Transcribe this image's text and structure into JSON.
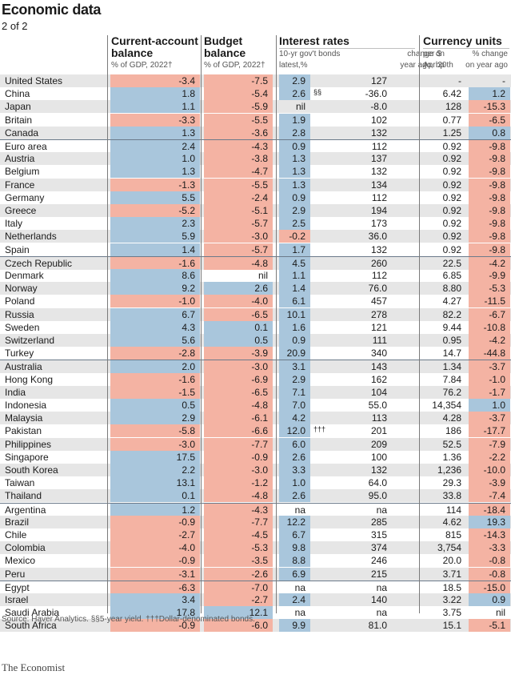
{
  "header": {
    "title": "Economic data",
    "subtitle": "2 of 2"
  },
  "columns": {
    "current_account": {
      "title": "Current-account balance",
      "sub": "% of GDP, 2022†"
    },
    "budget": {
      "title": "Budget balance",
      "sub": "% of GDP, 2022†"
    },
    "interest": {
      "title": "Interest rates",
      "sub_a": "10-yr gov't bonds",
      "sub_b": "latest,%",
      "sub_c": "change on",
      "sub_d": "year ago, bp"
    },
    "currency": {
      "title": "Currency units",
      "sub_a": "per $",
      "sub_b": "Apr 20th",
      "sub_c": "% change",
      "sub_d": "on year ago"
    }
  },
  "rows": [
    {
      "country": "United States",
      "ca": "-3.4",
      "bb": "-7.5",
      "ir": "2.9",
      "ch": "127",
      "fx": "-",
      "fxc": "-",
      "group": true
    },
    {
      "country": "China",
      "ca": "1.8",
      "bb": "-5.4",
      "ir": "2.6",
      "irnote": "§§",
      "ch": "-36.0",
      "fx": "6.42",
      "fxc": "1.2"
    },
    {
      "country": "Japan",
      "ca": "1.1",
      "bb": "-5.9",
      "ir": "nil",
      "ch": "-8.0",
      "fx": "128",
      "fxc": "-15.3"
    },
    {
      "country": "Britain",
      "ca": "-3.3",
      "bb": "-5.5",
      "ir": "1.9",
      "ch": "102",
      "fx": "0.77",
      "fxc": "-6.5"
    },
    {
      "country": "Canada",
      "ca": "1.3",
      "bb": "-3.6",
      "ir": "2.8",
      "ch": "132",
      "fx": "1.25",
      "fxc": "0.8"
    },
    {
      "country": "Euro area",
      "ca": "2.4",
      "bb": "-4.3",
      "ir": "0.9",
      "ch": "112",
      "fx": "0.92",
      "fxc": "-9.8",
      "group": true
    },
    {
      "country": "Austria",
      "ca": "1.0",
      "bb": "-3.8",
      "ir": "1.3",
      "ch": "137",
      "fx": "0.92",
      "fxc": "-9.8"
    },
    {
      "country": "Belgium",
      "ca": "1.3",
      "bb": "-4.7",
      "ir": "1.3",
      "ch": "132",
      "fx": "0.92",
      "fxc": "-9.8"
    },
    {
      "country": "France",
      "ca": "-1.3",
      "bb": "-5.5",
      "ir": "1.3",
      "ch": "134",
      "fx": "0.92",
      "fxc": "-9.8"
    },
    {
      "country": "Germany",
      "ca": "5.5",
      "bb": "-2.4",
      "ir": "0.9",
      "ch": "112",
      "fx": "0.92",
      "fxc": "-9.8"
    },
    {
      "country": "Greece",
      "ca": "-5.2",
      "bb": "-5.1",
      "ir": "2.9",
      "ch": "194",
      "fx": "0.92",
      "fxc": "-9.8"
    },
    {
      "country": "Italy",
      "ca": "2.3",
      "bb": "-5.7",
      "ir": "2.5",
      "ch": "173",
      "fx": "0.92",
      "fxc": "-9.8"
    },
    {
      "country": "Netherlands",
      "ca": "5.9",
      "bb": "-3.0",
      "ir": "-0.2",
      "ch": "36.0",
      "fx": "0.92",
      "fxc": "-9.8"
    },
    {
      "country": "Spain",
      "ca": "1.4",
      "bb": "-5.7",
      "ir": "1.7",
      "ch": "132",
      "fx": "0.92",
      "fxc": "-9.8"
    },
    {
      "country": "Czech Republic",
      "ca": "-1.6",
      "bb": "-4.8",
      "ir": "4.5",
      "ch": "260",
      "fx": "22.5",
      "fxc": "-4.2",
      "group": true
    },
    {
      "country": "Denmark",
      "ca": "8.6",
      "bb": "nil",
      "ir": "1.1",
      "ch": "112",
      "fx": "6.85",
      "fxc": "-9.9"
    },
    {
      "country": "Norway",
      "ca": "9.2",
      "bb": "2.6",
      "ir": "1.4",
      "ch": "76.0",
      "fx": "8.80",
      "fxc": "-5.3"
    },
    {
      "country": "Poland",
      "ca": "-1.0",
      "bb": "-4.0",
      "ir": "6.1",
      "ch": "457",
      "fx": "4.27",
      "fxc": "-11.5"
    },
    {
      "country": "Russia",
      "ca": "6.7",
      "bb": "-6.5",
      "ir": "10.1",
      "ch": "278",
      "fx": "82.2",
      "fxc": "-6.7"
    },
    {
      "country": "Sweden",
      "ca": "4.3",
      "bb": "0.1",
      "ir": "1.6",
      "ch": "121",
      "fx": "9.44",
      "fxc": "-10.8"
    },
    {
      "country": "Switzerland",
      "ca": "5.6",
      "bb": "0.5",
      "ir": "0.9",
      "ch": "111",
      "fx": "0.95",
      "fxc": "-4.2"
    },
    {
      "country": "Turkey",
      "ca": "-2.8",
      "bb": "-3.9",
      "ir": "20.9",
      "ch": "340",
      "fx": "14.7",
      "fxc": "-44.8"
    },
    {
      "country": "Australia",
      "ca": "2.0",
      "bb": "-3.0",
      "ir": "3.1",
      "ch": "143",
      "fx": "1.34",
      "fxc": "-3.7",
      "group": true
    },
    {
      "country": "Hong Kong",
      "ca": "-1.6",
      "bb": "-6.9",
      "ir": "2.9",
      "ch": "162",
      "fx": "7.84",
      "fxc": "-1.0"
    },
    {
      "country": "India",
      "ca": "-1.5",
      "bb": "-6.5",
      "ir": "7.1",
      "ch": "104",
      "fx": "76.2",
      "fxc": "-1.7"
    },
    {
      "country": "Indonesia",
      "ca": "0.5",
      "bb": "-4.8",
      "ir": "7.0",
      "ch": "55.0",
      "fx": "14,354",
      "fxc": "1.0"
    },
    {
      "country": "Malaysia",
      "ca": "2.9",
      "bb": "-6.1",
      "ir": "4.2",
      "ch": "113",
      "fx": "4.28",
      "fxc": "-3.7"
    },
    {
      "country": "Pakistan",
      "ca": "-5.8",
      "bb": "-6.6",
      "ir": "12.0",
      "irnote": "†††",
      "ch": "201",
      "fx": "186",
      "fxc": "-17.7"
    },
    {
      "country": "Philippines",
      "ca": "-3.0",
      "bb": "-7.7",
      "ir": "6.0",
      "ch": "209",
      "fx": "52.5",
      "fxc": "-7.9"
    },
    {
      "country": "Singapore",
      "ca": "17.5",
      "bb": "-0.9",
      "ir": "2.6",
      "ch": "100",
      "fx": "1.36",
      "fxc": "-2.2"
    },
    {
      "country": "South Korea",
      "ca": "2.2",
      "bb": "-3.0",
      "ir": "3.3",
      "ch": "132",
      "fx": "1,236",
      "fxc": "-10.0"
    },
    {
      "country": "Taiwan",
      "ca": "13.1",
      "bb": "-1.2",
      "ir": "1.0",
      "ch": "64.0",
      "fx": "29.3",
      "fxc": "-3.9"
    },
    {
      "country": "Thailand",
      "ca": "0.1",
      "bb": "-4.8",
      "ir": "2.6",
      "ch": "95.0",
      "fx": "33.8",
      "fxc": "-7.4"
    },
    {
      "country": "Argentina",
      "ca": "1.2",
      "bb": "-4.3",
      "ir": "na",
      "ch": "na",
      "fx": "114",
      "fxc": "-18.4",
      "group": true
    },
    {
      "country": "Brazil",
      "ca": "-0.9",
      "bb": "-7.7",
      "ir": "12.2",
      "ch": "285",
      "fx": "4.62",
      "fxc": "19.3"
    },
    {
      "country": "Chile",
      "ca": "-2.7",
      "bb": "-4.5",
      "ir": "6.7",
      "ch": "315",
      "fx": "815",
      "fxc": "-14.3"
    },
    {
      "country": "Colombia",
      "ca": "-4.0",
      "bb": "-5.3",
      "ir": "9.8",
      "ch": "374",
      "fx": "3,754",
      "fxc": "-3.3"
    },
    {
      "country": "Mexico",
      "ca": "-0.9",
      "bb": "-3.5",
      "ir": "8.8",
      "ch": "246",
      "fx": "20.0",
      "fxc": "-0.8"
    },
    {
      "country": "Peru",
      "ca": "-3.1",
      "bb": "-2.6",
      "ir": "6.9",
      "ch": "215",
      "fx": "3.71",
      "fxc": "-0.8"
    },
    {
      "country": "Egypt",
      "ca": "-6.3",
      "bb": "-7.0",
      "ir": "na",
      "ch": "na",
      "fx": "18.5",
      "fxc": "-15.0",
      "group": true
    },
    {
      "country": "Israel",
      "ca": "3.4",
      "bb": "-2.7",
      "ir": "2.4",
      "ch": "140",
      "fx": "3.22",
      "fxc": "0.9"
    },
    {
      "country": "Saudi Arabia",
      "ca": "17.8",
      "bb": "12.1",
      "ir": "na",
      "ch": "na",
      "fx": "3.75",
      "fxc": "nil"
    },
    {
      "country": "South Africa",
      "ca": "-0.9",
      "bb": "-6.0",
      "ir": "9.9",
      "ch": "81.0",
      "fx": "15.1",
      "fxc": "-5.1"
    }
  ],
  "colors": {
    "positive": "#a9c6dc",
    "negative": "#f4b3a3",
    "stripe": "#e6e6e6"
  },
  "footer": {
    "source": "Source: Haver Analytics. §§5-year yield. †††Dollar-denominated bonds.",
    "brand": "The Economist"
  }
}
